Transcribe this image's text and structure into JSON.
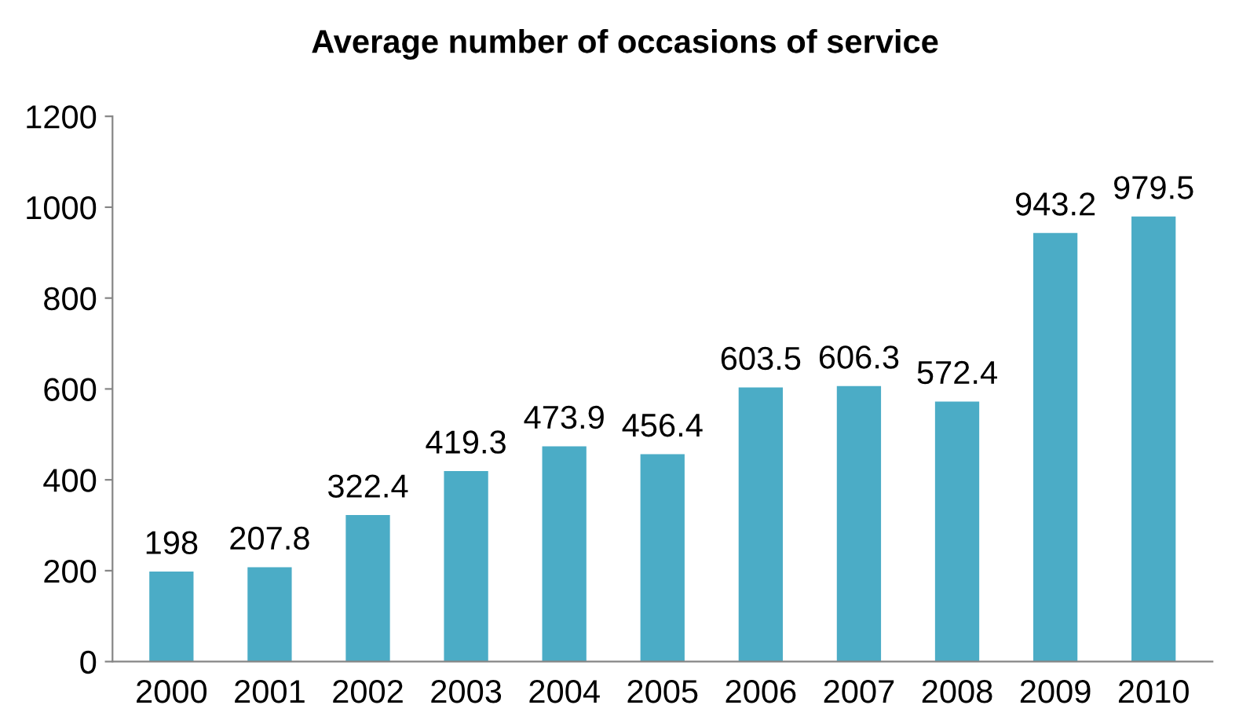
{
  "chart_data": {
    "type": "bar",
    "title": "Average number of occasions of service",
    "categories": [
      "2000",
      "2001",
      "2002",
      "2003",
      "2004",
      "2005",
      "2006",
      "2007",
      "2008",
      "2009",
      "2010"
    ],
    "values": [
      198,
      207.8,
      322.4,
      419.3,
      473.9,
      456.4,
      603.5,
      606.3,
      572.4,
      943.2,
      979.5
    ],
    "color": "#4bacc6",
    "ylim": [
      0,
      1200
    ],
    "yticks": [
      0,
      200,
      400,
      600,
      800,
      1000,
      1200
    ],
    "grid": false,
    "data_labels": true
  }
}
